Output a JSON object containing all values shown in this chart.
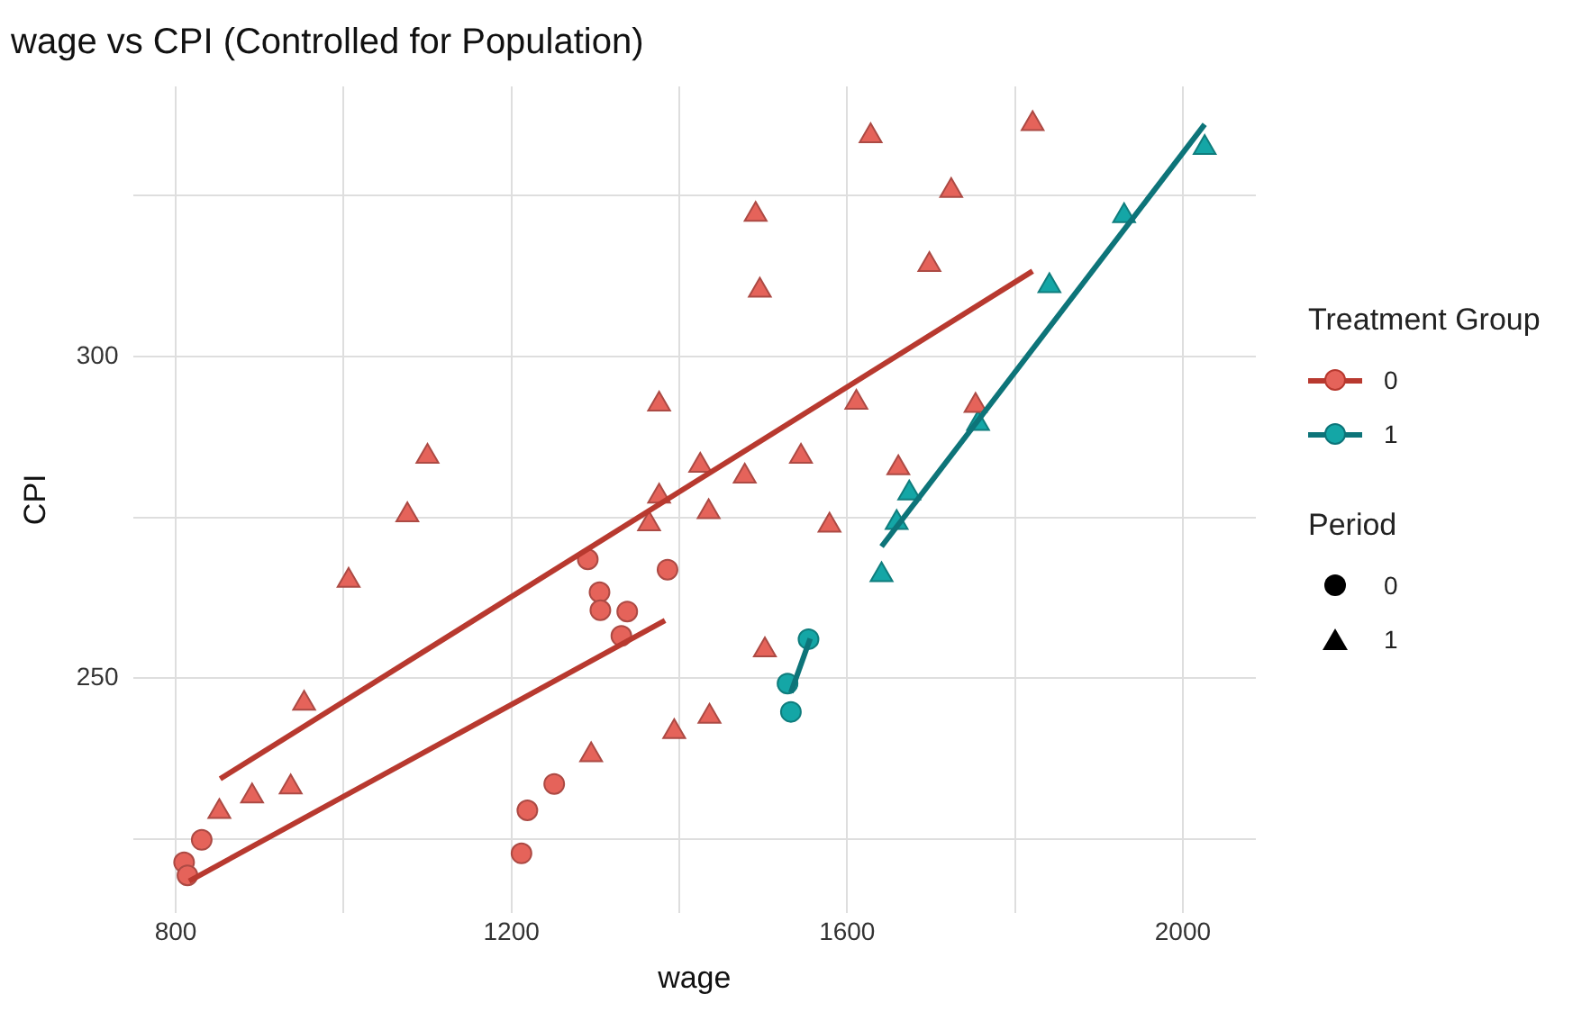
{
  "chart_data": {
    "type": "scatter",
    "title": "wage vs CPI (Controlled for Population)",
    "xlabel": "wage",
    "ylabel": "CPI",
    "legend_title": "Treatment Group",
    "legend": "right",
    "grid": true,
    "annotations": [
      "Period",
      "0",
      "1"
    ],
    "xlim": [
      749,
      2087
    ],
    "xticks": [
      800,
      {
        "value": 1000,
        "label": null
      },
      1200,
      {
        "value": 1400,
        "label": null
      },
      1600,
      {
        "value": 1800,
        "label": null
      },
      2000
    ],
    "ylim": [
      213.6,
      342
    ],
    "yticks": [
      {
        "value": 225,
        "label": null
      },
      250,
      {
        "value": 275,
        "label": null
      },
      300,
      {
        "value": 325,
        "label": null
      }
    ],
    "series": [
      {
        "marker": "circle",
        "color": "#e5635a",
        "x": [
          810,
          814,
          831,
          1212,
          1219,
          1251,
          1291,
          1305,
          1306,
          1331,
          1338,
          1386
        ],
        "values": [
          221.4,
          219.4,
          224.9,
          222.8,
          229.5,
          233.6,
          268.5,
          263.4,
          260.6,
          256.6,
          260.4,
          266.9
        ]
      },
      {
        "marker": "circle",
        "color": "#14a6a6",
        "x": [
          1529,
          1533,
          1554
        ],
        "values": [
          249.2,
          244.8,
          256.1
        ]
      },
      {
        "marker": "triangle",
        "color": "#e5635a",
        "x": [
          852,
          891,
          937,
          953,
          1006,
          1076,
          1100,
          1295,
          1364,
          1376,
          1376,
          1394,
          1425,
          1435,
          1436,
          1478,
          1491,
          1496,
          1502,
          1545,
          1579,
          1611,
          1628,
          1661,
          1698,
          1724,
          1753,
          1821
        ],
        "values": [
          229.3,
          231.7,
          233.1,
          246.1,
          265.2,
          275.4,
          284.5,
          238.1,
          274.0,
          278.3,
          292.6,
          241.7,
          283.1,
          275.9,
          244.1,
          281.4,
          322.1,
          310.3,
          254.4,
          284.5,
          273.8,
          292.9,
          334.3,
          282.7,
          314.3,
          325.8,
          292.4,
          336.2
        ]
      },
      {
        "marker": "triangle",
        "color": "#14a6a6",
        "x": [
          1641,
          1659,
          1674,
          1756,
          1841,
          1930,
          2026
        ],
        "values": [
          266.1,
          274.2,
          278.8,
          289.6,
          311.0,
          321.9,
          332.5
        ]
      },
      {
        "type": "line",
        "marker": "none",
        "color": "#b8392f",
        "x": [
          816,
          1383
        ],
        "values": [
          218.5,
          259.0
        ]
      },
      {
        "type": "line",
        "marker": "none",
        "color": "#0d7479",
        "x": [
          1533,
          1556
        ],
        "values": [
          247.8,
          256.2
        ]
      },
      {
        "type": "line",
        "marker": "none",
        "name": "0",
        "color": "#b8392f",
        "x": [
          853,
          1821
        ],
        "values": [
          234.4,
          313.3
        ]
      },
      {
        "type": "line",
        "marker": "none",
        "name": "1",
        "color": "#0d7479",
        "x": [
          1641,
          2026
        ],
        "values": [
          270.5,
          336.1
        ]
      }
    ]
  }
}
